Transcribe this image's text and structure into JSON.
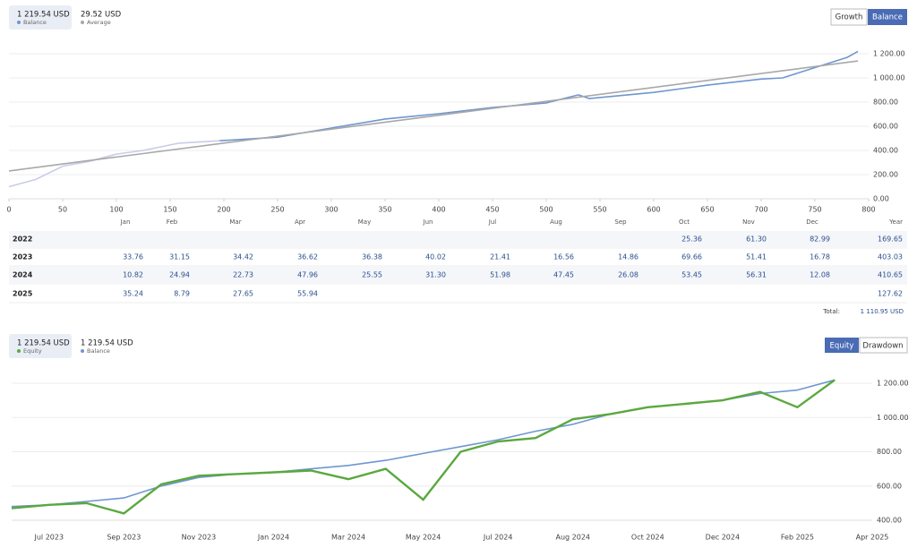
{
  "panels": {
    "top": [
      {
        "value": "1 219.54 USD"
      },
      {
        "value": "29.52 USD"
      }
    ],
    "top_buttons": [
      "Growth",
      "Balance"
    ],
    "bottom": [
      {
        "value": "1 219.54 USD"
      },
      {
        "value": "1 219.54 USD"
      }
    ],
    "bottom_buttons": [
      "Equity",
      "Drawdown"
    ]
  },
  "chart_data": [
    {
      "type": "line",
      "xlim": [
        0,
        800
      ],
      "ylim": [
        0,
        1200
      ],
      "xticks": [
        0,
        50,
        100,
        150,
        200,
        250,
        300,
        350,
        400,
        450,
        500,
        550,
        600,
        650,
        700,
        750,
        800
      ],
      "yticks": [
        {
          "value": 0,
          "label": "0.00"
        },
        {
          "value": 200,
          "label": "200.00"
        },
        {
          "value": 400,
          "label": "400.00"
        },
        {
          "value": 600,
          "label": "600.00"
        },
        {
          "value": 800,
          "label": "800.00"
        },
        {
          "value": 1000,
          "label": "1 000.00"
        },
        {
          "value": 1200,
          "label": "1 200.00"
        }
      ],
      "grid": true,
      "series": [
        {
          "name": "Balance",
          "color": "#6f96d1",
          "x": [
            196,
            250,
            300,
            350,
            400,
            450,
            500,
            530,
            540,
            600,
            650,
            700,
            720,
            750,
            780,
            790
          ],
          "values": [
            480,
            510,
            585,
            660,
            704,
            755,
            793,
            860,
            830,
            880,
            940,
            990,
            1000,
            1085,
            1170,
            1219.54
          ]
        },
        {
          "color": "#c9cce8",
          "x": [
            0,
            25,
            50,
            75,
            100,
            125,
            158,
            196
          ],
          "values": [
            100,
            160,
            270,
            310,
            370,
            400,
            460,
            480
          ]
        },
        {
          "name": "Average",
          "color": "#a8a8a8",
          "x": [
            0,
            790
          ],
          "values": [
            230,
            1140
          ]
        }
      ]
    },
    {
      "type": "line",
      "ylim": [
        400,
        1200
      ],
      "categories": [
        null,
        "Jul 2023",
        null,
        "Sep 2023",
        null,
        "Nov 2023",
        null,
        "Jan 2024",
        null,
        "Mar 2024",
        null,
        "May 2024",
        null,
        "Jul 2024",
        null,
        "Aug 2024",
        null,
        "Oct 2024",
        null,
        "Dec 2024",
        null,
        "Feb 2025",
        null,
        "Apr 2025"
      ],
      "yticks": [
        {
          "value": 400,
          "label": "400.00"
        },
        {
          "value": 600,
          "label": "600.00"
        },
        {
          "value": 800,
          "label": "800.00"
        },
        {
          "value": 1000,
          "label": "1 000.00"
        },
        {
          "value": 1200,
          "label": "1 200.00"
        }
      ],
      "grid": true,
      "series": [
        {
          "name": "Balance",
          "color": "#6f96d1",
          "values": [
            480,
            490,
            510,
            530,
            600,
            650,
            670,
            680,
            700,
            720,
            750,
            790,
            830,
            870,
            920,
            960,
            1020,
            1060,
            1080,
            1100,
            1140,
            1160,
            1219.54,
            null
          ]
        },
        {
          "name": "Equity",
          "color": "#5aa83e",
          "values": [
            470,
            490,
            500,
            440,
            610,
            660,
            670,
            680,
            690,
            640,
            700,
            520,
            800,
            860,
            880,
            990,
            1020,
            1060,
            1080,
            1100,
            1150,
            1060,
            1219.54,
            null
          ]
        }
      ]
    }
  ],
  "table": {
    "header": [
      "Jan",
      "Feb",
      "Mar",
      "Apr",
      "May",
      "Jun",
      "Jul",
      "Aug",
      "Sep",
      "Oct",
      "Nov",
      "Dec",
      "Year"
    ],
    "rows": [
      {
        "year": "2022",
        "cells": [
          null,
          null,
          null,
          null,
          null,
          null,
          null,
          null,
          null,
          "25.36",
          "61.30",
          "82.99",
          "169.65"
        ]
      },
      {
        "year": "2023",
        "cells": [
          "33.76",
          "31.15",
          "34.42",
          "36.62",
          "36.38",
          "40.02",
          "21.41",
          "16.56",
          "14.86",
          "69.66",
          "51.41",
          "16.78",
          "403.03"
        ]
      },
      {
        "year": "2024",
        "cells": [
          "10.82",
          "24.94",
          "22.73",
          "47.96",
          "25.55",
          "31.30",
          "51.98",
          "47.45",
          "26.08",
          "53.45",
          "56.31",
          "12.08",
          "410.65"
        ]
      },
      {
        "year": "2025",
        "cells": [
          "35.24",
          "8.79",
          "27.65",
          "55.94",
          null,
          null,
          null,
          null,
          null,
          null,
          null,
          null,
          "127.62"
        ]
      }
    ],
    "total_label": "Total:",
    "total_value": "1 110.95 USD"
  }
}
